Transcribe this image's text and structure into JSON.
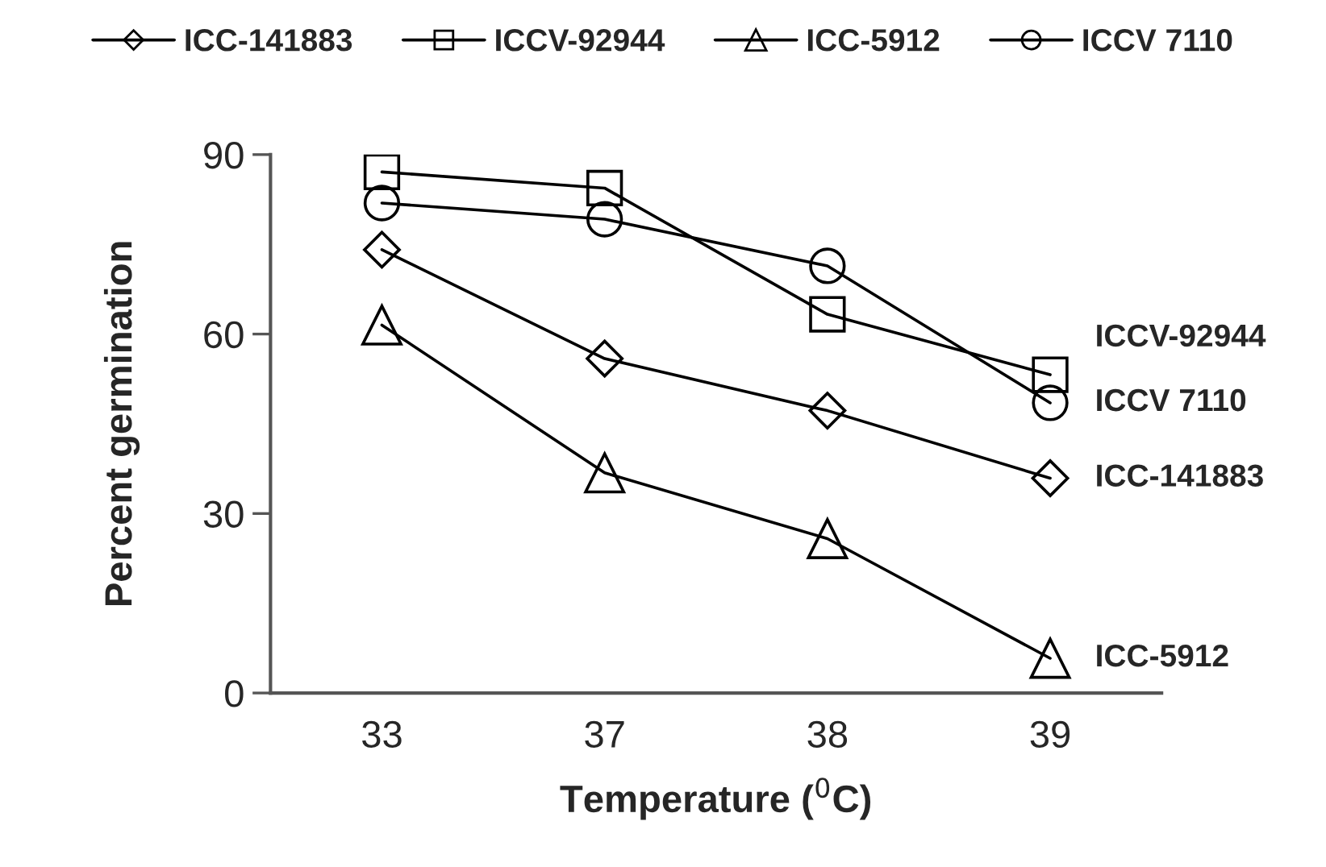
{
  "chart_data": {
    "type": "line",
    "xlabel": "Temperature ($^{0}$C)",
    "ylabel": "Percent germination",
    "categories": [
      "33",
      "37",
      "38",
      "39"
    ],
    "series": [
      {
        "name": "ICC-141883",
        "color": "#000000",
        "marker": "diamond",
        "values": [
          74.1,
          55.9,
          47.2,
          35.9
        ]
      },
      {
        "name": "ICCV-92944",
        "color": "#000000",
        "marker": "square",
        "values": [
          87.1,
          84.4,
          63.3,
          53.2
        ]
      },
      {
        "name": "ICC-5912",
        "color": "#000000",
        "marker": "triangle",
        "values": [
          61.5,
          36.8,
          25.8,
          5.8
        ]
      },
      {
        "name": "ICCV 7110",
        "color": "#000000",
        "marker": "circle",
        "values": [
          81.9,
          79.2,
          71.4,
          48.5
        ]
      }
    ],
    "ylim": [
      0,
      90
    ],
    "yticks": [
      0,
      30,
      60,
      90
    ],
    "grid": false,
    "legend": "top",
    "line_style": "solid"
  }
}
